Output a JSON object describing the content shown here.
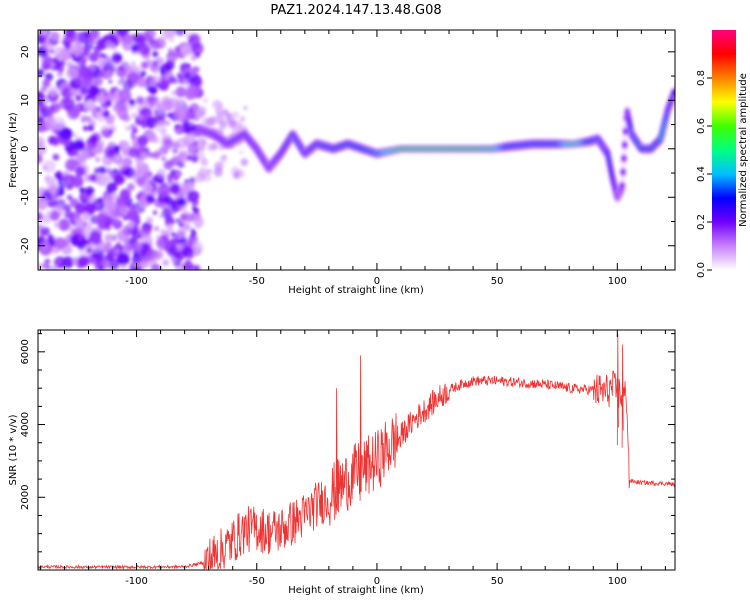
{
  "title": "PAZ1.2024.147.13.48.G08",
  "chart_data": [
    {
      "type": "heatmap",
      "xlabel": "Height of straight line (km)",
      "ylabel": "Frequency (Hz)",
      "xlim": [
        -141,
        124
      ],
      "ylim": [
        -25,
        24.5
      ],
      "xticks": [
        -100,
        -50,
        0,
        50,
        100
      ],
      "yticks": [
        -20,
        -10,
        0,
        10,
        20
      ],
      "colorbar": {
        "label": "Normalized spectral amplitude",
        "range": [
          0,
          1
        ],
        "ticks": [
          0.0,
          0.2,
          0.4,
          0.6,
          0.8
        ],
        "colormap": [
          "#ffffff",
          "#c880ff",
          "#7000ff",
          "#0000ff",
          "#00c0ff",
          "#00ff80",
          "#40ff00",
          "#ffff00",
          "#ff8000",
          "#ff0000",
          "#ff0080"
        ]
      },
      "noise_region": {
        "x": [
          -141,
          -74
        ],
        "y": [
          -25,
          24.5
        ]
      },
      "ridge": [
        {
          "x": -74,
          "y": 4,
          "a": 0.35
        },
        {
          "x": -68,
          "y": 3,
          "a": 0.35
        },
        {
          "x": -62,
          "y": 1,
          "a": 0.38
        },
        {
          "x": -55,
          "y": 3,
          "a": 0.38
        },
        {
          "x": -50,
          "y": 0,
          "a": 0.32
        },
        {
          "x": -45,
          "y": -4,
          "a": 0.3
        },
        {
          "x": -40,
          "y": -1,
          "a": 0.35
        },
        {
          "x": -35,
          "y": 3,
          "a": 0.4
        },
        {
          "x": -30,
          "y": -1,
          "a": 0.4
        },
        {
          "x": -25,
          "y": 1,
          "a": 0.45
        },
        {
          "x": -18,
          "y": 0,
          "a": 0.5
        },
        {
          "x": -12,
          "y": 1,
          "a": 0.5
        },
        {
          "x": -6,
          "y": 0,
          "a": 0.55
        },
        {
          "x": 0,
          "y": -1,
          "a": 0.6
        },
        {
          "x": 5,
          "y": -0.5,
          "a": 0.75
        },
        {
          "x": 10,
          "y": 0,
          "a": 0.9
        },
        {
          "x": 20,
          "y": 0,
          "a": 0.9
        },
        {
          "x": 30,
          "y": 0,
          "a": 0.9
        },
        {
          "x": 40,
          "y": 0,
          "a": 0.9
        },
        {
          "x": 48,
          "y": 0,
          "a": 0.85
        },
        {
          "x": 55,
          "y": 0.5,
          "a": 0.5
        },
        {
          "x": 65,
          "y": 1,
          "a": 0.5
        },
        {
          "x": 75,
          "y": 1,
          "a": 0.55
        },
        {
          "x": 82,
          "y": 1,
          "a": 0.85
        },
        {
          "x": 88,
          "y": 1.5,
          "a": 0.55
        },
        {
          "x": 92,
          "y": 2,
          "a": 0.45
        },
        {
          "x": 96,
          "y": -1,
          "a": 0.35
        },
        {
          "x": 98,
          "y": -6,
          "a": 0.3
        },
        {
          "x": 100,
          "y": -10,
          "a": 0.25
        },
        {
          "x": 102,
          "y": -8,
          "a": 0.2
        },
        {
          "x": 104,
          "y": 8,
          "a": 0.2
        },
        {
          "x": 106,
          "y": 3,
          "a": 0.4
        },
        {
          "x": 110,
          "y": 0,
          "a": 0.55
        },
        {
          "x": 114,
          "y": 0,
          "a": 0.55
        },
        {
          "x": 118,
          "y": 2,
          "a": 0.45
        },
        {
          "x": 121,
          "y": 8,
          "a": 0.35
        },
        {
          "x": 124,
          "y": 12,
          "a": 0.3
        }
      ]
    },
    {
      "type": "line",
      "xlabel": "Height of straight line (km)",
      "ylabel": "SNR (10 * v/v)",
      "xlim": [
        -141,
        124
      ],
      "ylim": [
        0,
        6600
      ],
      "xticks": [
        -100,
        -50,
        0,
        50,
        100
      ],
      "yticks": [
        2000,
        4000,
        6000
      ],
      "color": "#ee3333",
      "x": [
        -141,
        -120,
        -100,
        -80,
        -72,
        -65,
        -60,
        -55,
        -50,
        -45,
        -40,
        -35,
        -30,
        -25,
        -20,
        -15,
        -10,
        -5,
        0,
        5,
        10,
        15,
        20,
        25,
        30,
        35,
        40,
        50,
        60,
        70,
        80,
        90,
        95,
        98,
        100,
        102,
        104,
        105,
        110,
        120,
        124
      ],
      "values": [
        90,
        80,
        80,
        90,
        200,
        500,
        800,
        1100,
        1150,
        1050,
        1100,
        1300,
        1500,
        1800,
        2000,
        2300,
        2600,
        2800,
        3000,
        3400,
        3700,
        4100,
        4400,
        4700,
        4950,
        5100,
        5200,
        5200,
        5150,
        5100,
        5000,
        4950,
        4900,
        5000,
        4900,
        4800,
        4750,
        2450,
        2400,
        2380,
        2350
      ]
    }
  ]
}
